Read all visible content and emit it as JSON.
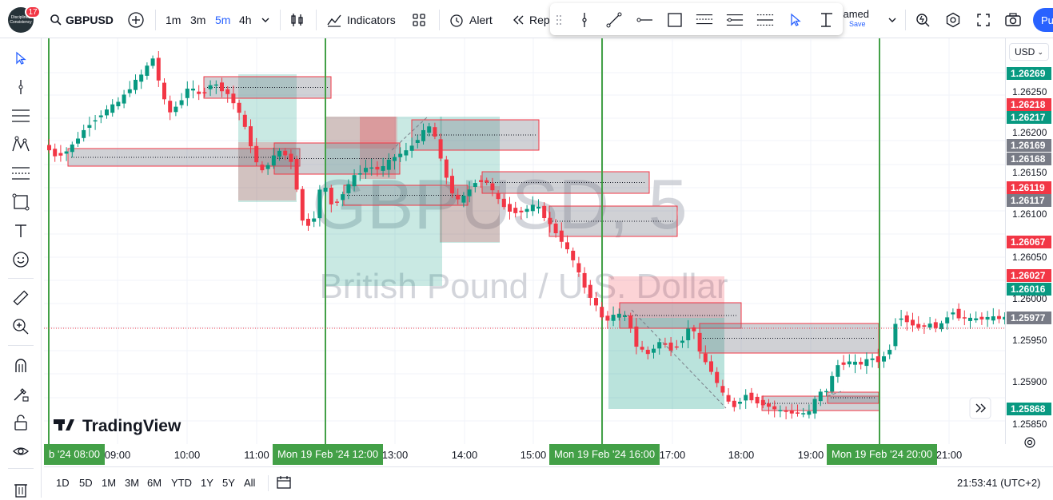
{
  "header": {
    "notification_count": "17",
    "symbol": "GBPUSD",
    "timeframes": [
      "1m",
      "3m",
      "5m",
      "4h"
    ],
    "active_timeframe": "5m",
    "indicators_label": "Indicators",
    "alert_label": "Alert",
    "replay_label": "Rep",
    "layout_name": "nnamed",
    "layout_save": "Save",
    "publish_label": "Pu"
  },
  "watermark": {
    "symbol_interval": "GBPUSD, 5",
    "description": "British Pound / U.S. Dollar"
  },
  "branding": {
    "logo_text": "TradingView"
  },
  "price_axis": {
    "currency": "USD",
    "ticks": [
      "1.26250",
      "1.26200",
      "1.26150",
      "1.26100",
      "1.26050",
      "1.26000",
      "1.25950",
      "1.25900",
      "1.25850"
    ],
    "labels": [
      {
        "text": "1.26269",
        "color": "#089981"
      },
      {
        "text": "1.26218",
        "color": "#f23645"
      },
      {
        "text": "1.26217",
        "color": "#089981"
      },
      {
        "text": "1.26169",
        "color": "#787b86"
      },
      {
        "text": "1.26168",
        "color": "#787b86"
      },
      {
        "text": "1.26119",
        "color": "#f23645"
      },
      {
        "text": "1.26117",
        "color": "#787b86"
      },
      {
        "text": "1.26067",
        "color": "#f23645"
      },
      {
        "text": "1.26027",
        "color": "#f23645"
      },
      {
        "text": "1.26016",
        "color": "#089981"
      },
      {
        "text": "1.25977",
        "color": "#787b86"
      },
      {
        "text": "1.25868",
        "color": "#089981"
      }
    ]
  },
  "time_axis": {
    "ticks": [
      "09:00",
      "10:00",
      "11:00",
      "13:00",
      "14:00",
      "15:00",
      "17:00",
      "18:00",
      "19:00",
      "21:00"
    ],
    "highlights": [
      {
        "text": "b '24   08:00"
      },
      {
        "text": "Mon 19 Feb '24   12:00"
      },
      {
        "text": "Mon 19 Feb '24   16:00"
      },
      {
        "text": "Mon 19 Feb '24   20:00"
      }
    ]
  },
  "bottom": {
    "ranges": [
      "1D",
      "5D",
      "1M",
      "3M",
      "6M",
      "YTD",
      "1Y",
      "5Y",
      "All"
    ],
    "clock": "21:53:41 (UTC+2)"
  },
  "colors": {
    "up": "#089981",
    "down": "#f23645",
    "accent": "#2962ff",
    "session_line": "#43a047"
  }
}
